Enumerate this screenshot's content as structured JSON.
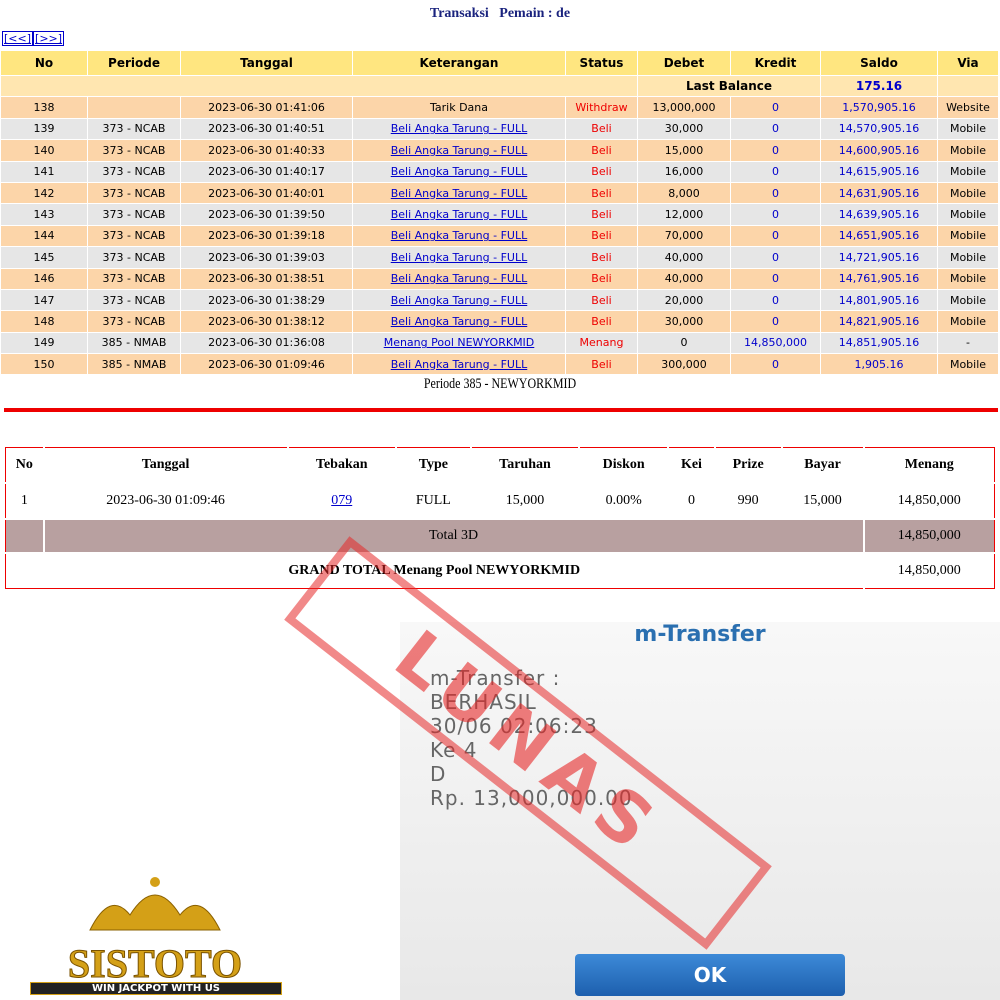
{
  "header": {
    "title": "Transaksi   Pemain : de",
    "nav": [
      "[<<]",
      "[>>]"
    ]
  },
  "transactions": {
    "columns": [
      "No",
      "Periode",
      "Tanggal",
      "Keterangan",
      "Status",
      "Debet",
      "Kredit",
      "Saldo",
      "Via"
    ],
    "last_balance_label": "Last Balance",
    "last_balance": "175.16",
    "rows": [
      [
        "138",
        "",
        "2023-06-30 01:41:06",
        "Tarik Dana",
        "Withdraw",
        "13,000,000",
        "0",
        "1,570,905.16",
        "Website"
      ],
      [
        "139",
        "373 - NCAB",
        "2023-06-30 01:40:51",
        "Beli Angka Tarung - FULL",
        "Beli",
        "30,000",
        "0",
        "14,570,905.16",
        "Mobile"
      ],
      [
        "140",
        "373 - NCAB",
        "2023-06-30 01:40:33",
        "Beli Angka Tarung - FULL",
        "Beli",
        "15,000",
        "0",
        "14,600,905.16",
        "Mobile"
      ],
      [
        "141",
        "373 - NCAB",
        "2023-06-30 01:40:17",
        "Beli Angka Tarung - FULL",
        "Beli",
        "16,000",
        "0",
        "14,615,905.16",
        "Mobile"
      ],
      [
        "142",
        "373 - NCAB",
        "2023-06-30 01:40:01",
        "Beli Angka Tarung - FULL",
        "Beli",
        "8,000",
        "0",
        "14,631,905.16",
        "Mobile"
      ],
      [
        "143",
        "373 - NCAB",
        "2023-06-30 01:39:50",
        "Beli Angka Tarung - FULL",
        "Beli",
        "12,000",
        "0",
        "14,639,905.16",
        "Mobile"
      ],
      [
        "144",
        "373 - NCAB",
        "2023-06-30 01:39:18",
        "Beli Angka Tarung - FULL",
        "Beli",
        "70,000",
        "0",
        "14,651,905.16",
        "Mobile"
      ],
      [
        "145",
        "373 - NCAB",
        "2023-06-30 01:39:03",
        "Beli Angka Tarung - FULL",
        "Beli",
        "40,000",
        "0",
        "14,721,905.16",
        "Mobile"
      ],
      [
        "146",
        "373 - NCAB",
        "2023-06-30 01:38:51",
        "Beli Angka Tarung - FULL",
        "Beli",
        "40,000",
        "0",
        "14,761,905.16",
        "Mobile"
      ],
      [
        "147",
        "373 - NCAB",
        "2023-06-30 01:38:29",
        "Beli Angka Tarung - FULL",
        "Beli",
        "20,000",
        "0",
        "14,801,905.16",
        "Mobile"
      ],
      [
        "148",
        "373 - NCAB",
        "2023-06-30 01:38:12",
        "Beli Angka Tarung - FULL",
        "Beli",
        "30,000",
        "0",
        "14,821,905.16",
        "Mobile"
      ],
      [
        "149",
        "385 - NMAB",
        "2023-06-30 01:36:08",
        "Menang Pool NEWYORKMID",
        "Menang",
        "0",
        "14,850,000",
        "14,851,905.16",
        "-"
      ],
      [
        "150",
        "385 - NMAB",
        "2023-06-30 01:09:46",
        "Beli Angka Tarung - FULL",
        "Beli",
        "300,000",
        "0",
        "1,905.16",
        "Mobile"
      ]
    ]
  },
  "periode": {
    "title": "Periode 385 - NEWYORKMID",
    "columns": [
      "No",
      "Tanggal",
      "Tebakan",
      "Type",
      "Taruhan",
      "Diskon",
      "Kei",
      "Prize",
      "Bayar",
      "Menang"
    ],
    "rows": [
      [
        "1",
        "2023-06-30 01:09:46",
        "079",
        "FULL",
        "15,000",
        "0.00%",
        "0",
        "990",
        "15,000",
        "14,850,000"
      ]
    ],
    "total_label": "Total 3D",
    "total": "14,850,000",
    "grand_total_label": "GRAND TOTAL  Menang Pool NEWYORKMID",
    "grand_total": "14,850,000"
  },
  "transfer": {
    "title": "m-Transfer",
    "lines": [
      "m-Transfer :",
      "BERHASIL",
      "30/06 02:06:23",
      "Ke 4",
      "D",
      "Rp. 13,000,000.00"
    ],
    "button": "OK"
  },
  "stamp": "LUNAS",
  "logo": {
    "name": "SISTOTO",
    "tagline": "WIN JACKPOT WITH US"
  }
}
